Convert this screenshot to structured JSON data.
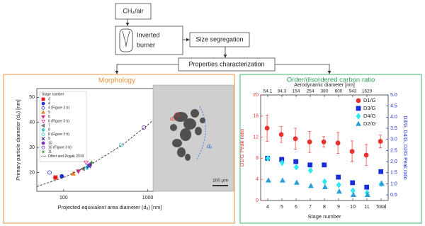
{
  "diagram": {
    "nodes": [
      {
        "label": "CH₄/air"
      },
      {
        "label_lines": [
          "Inverted",
          "burner"
        ]
      },
      {
        "label": "Size segregation"
      },
      {
        "label": "Properties characterization"
      }
    ]
  },
  "tem_image": {
    "labels": [
      "dₚ",
      "dₐ"
    ],
    "scale_bar": "100 µm"
  },
  "chart_data": [
    {
      "type": "scatter",
      "title": "Morphology",
      "x_label": "Projected equivalent area diameter (dₐ) [nm]",
      "y_label": "Primary particle diameter (dₚ) [nm]",
      "x_scale": "log",
      "xlim": [
        48,
        1200
      ],
      "xticks": [
        100,
        1000
      ],
      "ylim": [
        12.5,
        53.5
      ],
      "yticks": [
        20,
        30,
        40,
        50
      ],
      "legend_title": "Stage number",
      "legend": "upper left",
      "series": [
        {
          "name": "3",
          "color": "#e41a1c",
          "marker": "square",
          "filled": true,
          "x": [
            80
          ],
          "y": [
            18
          ]
        },
        {
          "name": "4",
          "color": "#1f2fd6",
          "marker": "circle",
          "filled": true,
          "x": [
            95
          ],
          "y": [
            18.5
          ]
        },
        {
          "name": "4 (Figure 3 b)",
          "color": "#1f2fd6",
          "marker": "circle",
          "filled": false,
          "x": [
            68
          ],
          "y": [
            20
          ]
        },
        {
          "name": "5",
          "color": "#f07f1a",
          "marker": "triangle-up",
          "filled": true,
          "x": [
            130
          ],
          "y": [
            19.5
          ]
        },
        {
          "name": "6",
          "color": "#d62f8a",
          "marker": "triangle-down",
          "filled": true,
          "x": [
            150
          ],
          "y": [
            20.5
          ]
        },
        {
          "name": "6 (Figure 3 b)",
          "color": "#d62f8a",
          "marker": "triangle-down",
          "filled": false,
          "x": [
            185
          ],
          "y": [
            24
          ]
        },
        {
          "name": "7",
          "color": "#7a7a7a",
          "marker": "triangle-left",
          "filled": true,
          "x": [
            170
          ],
          "y": [
            21.5
          ]
        },
        {
          "name": "8",
          "color": "#33c7d6",
          "marker": "diamond",
          "filled": true,
          "x": [
            190
          ],
          "y": [
            22
          ]
        },
        {
          "name": "8 (Figure 3 b)",
          "color": "#33c7d6",
          "marker": "circle",
          "filled": false,
          "x": [
            480
          ],
          "y": [
            31
          ]
        },
        {
          "name": "9",
          "color": "#333399",
          "marker": "cross",
          "filled": true,
          "x": [
            200
          ],
          "y": [
            22.5
          ]
        },
        {
          "name": "10",
          "color": "#7b2fbe",
          "marker": "circle",
          "filled": true,
          "x": [
            205
          ],
          "y": [
            23
          ]
        },
        {
          "name": "10 (Figure 3 b)",
          "color": "#7b2fbe",
          "marker": "circle",
          "filled": false,
          "x": [
            900
          ],
          "y": [
            38
          ]
        },
        {
          "name": "11",
          "color": "#2e8b2e",
          "marker": "plus",
          "filled": true,
          "x": [
            215
          ],
          "y": [
            24
          ]
        },
        {
          "name": "Olfert and Rogak 2019",
          "color": "#333333",
          "marker": "dashed-line",
          "x": [
            48,
            100,
            200,
            500,
            1000,
            1200
          ],
          "y": [
            14.4,
            18,
            22.7,
            31,
            39,
            41.4
          ]
        }
      ]
    },
    {
      "type": "scatter",
      "title": "Order/disordered carbon ratio",
      "x_label": "Stage number",
      "y_label": "D1/G Peak ratio",
      "y2_label": "D3/G, D4/G, D2/G Peak ratio",
      "top_axis_label": "Aerodynamic diameter [nm]",
      "top_axis_labels": [
        "54.1",
        "94.3",
        "154",
        "254",
        "380",
        "600",
        "943",
        "1620"
      ],
      "categories": [
        "4",
        "5",
        "6",
        "7",
        "8",
        "9",
        "10",
        "11",
        "Total"
      ],
      "ylim": [
        0,
        20
      ],
      "yticks": [
        0,
        4,
        8,
        12,
        16,
        20
      ],
      "y2lim": [
        0.25,
        5
      ],
      "y2ticks": [
        0.5,
        {
          "value": 1,
          "label": "1.0"
        },
        1.5,
        {
          "value": 2,
          "label": "2.0"
        },
        2.5,
        {
          "value": 3,
          "label": "3.0"
        },
        3.5,
        {
          "value": 4,
          "label": "4.0"
        },
        4.5,
        {
          "value": 5,
          "label": "5.0"
        }
      ],
      "legend": "upper right",
      "series": [
        {
          "name": "D1/G",
          "color": "#e8322e",
          "marker": "circle",
          "values": [
            13.7,
            12.5,
            11.7,
            11.1,
            11.1,
            10.9,
            9.3,
            8.6,
            11.2
          ],
          "errors": [
            2.5,
            1.5,
            2,
            2,
            1,
            2,
            2,
            2,
            1.2
          ]
        },
        {
          "name": "D3/G",
          "color": "#1a2ed8",
          "marker": "square",
          "axis": "y2",
          "values": [
            2.15,
            2.1,
            2.0,
            1.85,
            1.85,
            1.3,
            1.05,
            0.85,
            1.55
          ]
        },
        {
          "name": "D4/G",
          "color": "#2ee8f0",
          "marker": "diamond",
          "axis": "y2",
          "values": [
            2.15,
            1.95,
            1.75,
            1.6,
            1.1,
            0.95,
            0.7,
            0.6,
            1.0
          ]
        },
        {
          "name": "D2/G",
          "color": "#2a9fd6",
          "marker": "triangle-up",
          "axis": "y2",
          "values": [
            1.15,
            1.15,
            1.05,
            0.9,
            0.85,
            0.65,
            0.5,
            0.5,
            1.0
          ]
        }
      ]
    }
  ]
}
